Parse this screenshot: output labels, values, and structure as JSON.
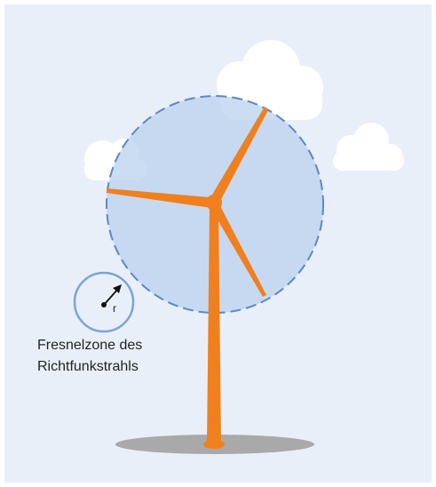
{
  "legend": {
    "radius_label": "r",
    "caption": [
      "Fresnelzone des",
      "Richtfunkstrahls"
    ]
  }
}
